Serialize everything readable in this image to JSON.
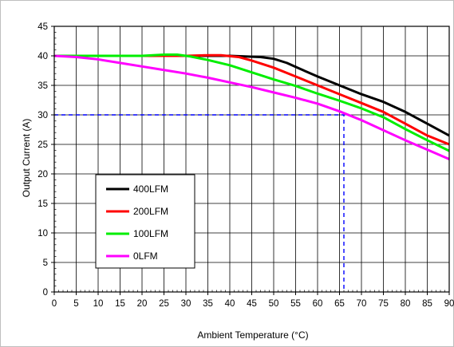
{
  "chart_data": {
    "type": "line",
    "xlabel": "Ambient Temperature (°C)",
    "ylabel": "Output Current (A)",
    "xlim": [
      0,
      90
    ],
    "ylim": [
      0,
      45
    ],
    "xticks": [
      0,
      5,
      10,
      15,
      20,
      25,
      30,
      35,
      40,
      45,
      50,
      55,
      60,
      65,
      70,
      75,
      80,
      85,
      90
    ],
    "yticks": [
      0,
      5,
      10,
      15,
      20,
      25,
      30,
      35,
      40,
      45
    ],
    "grid": true,
    "legend_position": "lower-left",
    "series": [
      {
        "name": "400LFM",
        "color": "#000000",
        "x": [
          0,
          30,
          40,
          47,
          50,
          53,
          56,
          60,
          65,
          70,
          75,
          80,
          85,
          90
        ],
        "y": [
          40,
          40,
          40,
          39.8,
          39.5,
          38.8,
          37.8,
          36.5,
          35,
          33.5,
          32.2,
          30.5,
          28.5,
          26.5
        ]
      },
      {
        "name": "200LFM",
        "color": "#ff0000",
        "x": [
          0,
          30,
          35,
          38,
          42,
          45,
          50,
          55,
          60,
          65,
          70,
          75,
          80,
          85,
          90
        ],
        "y": [
          40,
          40,
          40.1,
          40.1,
          39.8,
          39.2,
          38,
          36.5,
          35,
          33.5,
          32,
          30.5,
          28.5,
          26.5,
          25
        ]
      },
      {
        "name": "100LFM",
        "color": "#00ee00",
        "x": [
          0,
          20,
          25,
          28,
          31,
          35,
          40,
          45,
          50,
          55,
          60,
          65,
          70,
          75,
          80,
          85,
          90
        ],
        "y": [
          40,
          40,
          40.2,
          40.2,
          39.9,
          39.3,
          38.4,
          37.2,
          36,
          34.9,
          33.6,
          32.4,
          31.1,
          29.6,
          27.6,
          25.7,
          23.9
        ]
      },
      {
        "name": "0LFM",
        "color": "#ff00ff",
        "x": [
          0,
          5,
          10,
          15,
          20,
          25,
          30,
          35,
          40,
          45,
          50,
          55,
          60,
          65,
          70,
          75,
          80,
          85,
          90
        ],
        "y": [
          40,
          39.8,
          39.4,
          38.8,
          38.2,
          37.6,
          37,
          36.3,
          35.5,
          34.7,
          33.8,
          32.9,
          31.9,
          30.6,
          29.1,
          27.4,
          25.7,
          24.1,
          22.5
        ]
      }
    ],
    "reference_lines": [
      {
        "color": "#0000ff",
        "style": "dashed",
        "points": [
          [
            0,
            30
          ],
          [
            66,
            30
          ],
          [
            66,
            0
          ]
        ]
      }
    ]
  }
}
